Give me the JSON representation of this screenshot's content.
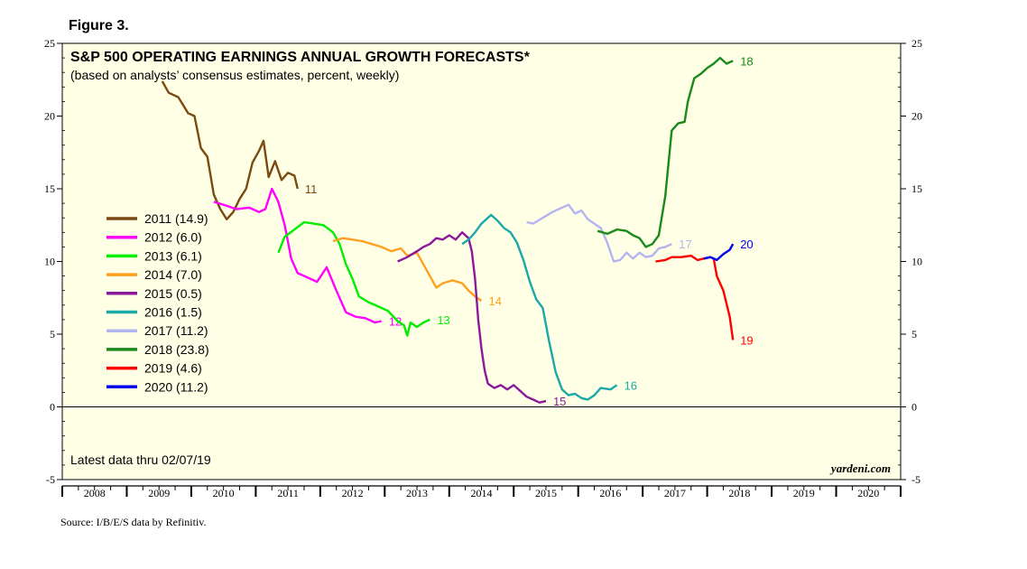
{
  "figure_label": "Figure 3.",
  "source_note": "Source: I/B/E/S data by Refinitiv.",
  "watermark": "yardeni.com",
  "latest_data": "Latest data thru 02/07/19",
  "chart_data": {
    "type": "line",
    "title": "S&P 500 OPERATING EARNINGS ANNUAL GROWTH FORECASTS*",
    "subtitle": "(based on analysts’ consensus estimates, percent, weekly)",
    "xlabel": "",
    "ylabel": "",
    "xlim": [
      2007.5,
      2020.5
    ],
    "ylim": [
      -5,
      25
    ],
    "y_ticks": [
      -5,
      0,
      5,
      10,
      15,
      20,
      25
    ],
    "x_tick_labels": [
      "2008",
      "2009",
      "2010",
      "2011",
      "2012",
      "2013",
      "2014",
      "2015",
      "2016",
      "2017",
      "2018",
      "2019",
      "2020"
    ],
    "grid": false,
    "zero_line": true,
    "legend_position": "left",
    "series": [
      {
        "name": "2011 (14.9)",
        "end_label": "11",
        "color": "#7b4a12",
        "points": [
          [
            2009.05,
            22.4
          ],
          [
            2009.15,
            21.6
          ],
          [
            2009.3,
            21.3
          ],
          [
            2009.45,
            20.2
          ],
          [
            2009.55,
            20.0
          ],
          [
            2009.65,
            17.8
          ],
          [
            2009.75,
            17.2
          ],
          [
            2009.85,
            14.6
          ],
          [
            2009.95,
            13.6
          ],
          [
            2010.05,
            12.9
          ],
          [
            2010.15,
            13.4
          ],
          [
            2010.25,
            14.3
          ],
          [
            2010.35,
            15.0
          ],
          [
            2010.45,
            16.8
          ],
          [
            2010.55,
            17.6
          ],
          [
            2010.62,
            18.3
          ],
          [
            2010.7,
            15.8
          ],
          [
            2010.8,
            16.9
          ],
          [
            2010.9,
            15.6
          ],
          [
            2011.0,
            16.1
          ],
          [
            2011.1,
            15.9
          ],
          [
            2011.15,
            15.0
          ]
        ]
      },
      {
        "name": "2012 (6.0)",
        "end_label": "12",
        "color": "#ff00ff",
        "points": [
          [
            2009.85,
            14.1
          ],
          [
            2010.0,
            13.9
          ],
          [
            2010.2,
            13.6
          ],
          [
            2010.4,
            13.7
          ],
          [
            2010.55,
            13.4
          ],
          [
            2010.65,
            13.6
          ],
          [
            2010.75,
            15.0
          ],
          [
            2010.85,
            14.1
          ],
          [
            2010.95,
            12.5
          ],
          [
            2011.05,
            10.2
          ],
          [
            2011.15,
            9.2
          ],
          [
            2011.3,
            8.9
          ],
          [
            2011.45,
            8.6
          ],
          [
            2011.6,
            9.6
          ],
          [
            2011.75,
            8.0
          ],
          [
            2011.9,
            6.5
          ],
          [
            2012.05,
            6.2
          ],
          [
            2012.2,
            6.1
          ],
          [
            2012.35,
            5.8
          ],
          [
            2012.45,
            5.9
          ]
        ]
      },
      {
        "name": "2013 (6.1)",
        "end_label": "13",
        "color": "#00ee00",
        "points": [
          [
            2010.85,
            10.6
          ],
          [
            2010.95,
            11.7
          ],
          [
            2011.1,
            12.2
          ],
          [
            2011.25,
            12.7
          ],
          [
            2011.4,
            12.6
          ],
          [
            2011.55,
            12.5
          ],
          [
            2011.7,
            12.0
          ],
          [
            2011.8,
            11.2
          ],
          [
            2011.9,
            9.8
          ],
          [
            2012.0,
            8.8
          ],
          [
            2012.1,
            7.6
          ],
          [
            2012.25,
            7.2
          ],
          [
            2012.4,
            6.9
          ],
          [
            2012.55,
            6.6
          ],
          [
            2012.7,
            5.9
          ],
          [
            2012.8,
            5.6
          ],
          [
            2012.85,
            4.9
          ],
          [
            2012.9,
            5.8
          ],
          [
            2013.0,
            5.5
          ],
          [
            2013.1,
            5.8
          ],
          [
            2013.2,
            6.0
          ]
        ]
      },
      {
        "name": "2014 (7.0)",
        "end_label": "14",
        "color": "#ffa020",
        "points": [
          [
            2011.7,
            11.4
          ],
          [
            2011.85,
            11.6
          ],
          [
            2012.0,
            11.5
          ],
          [
            2012.15,
            11.4
          ],
          [
            2012.3,
            11.2
          ],
          [
            2012.45,
            11.0
          ],
          [
            2012.6,
            10.7
          ],
          [
            2012.75,
            10.9
          ],
          [
            2012.85,
            10.4
          ],
          [
            2013.0,
            10.6
          ],
          [
            2013.1,
            9.8
          ],
          [
            2013.2,
            9.0
          ],
          [
            2013.3,
            8.2
          ],
          [
            2013.4,
            8.5
          ],
          [
            2013.55,
            8.7
          ],
          [
            2013.7,
            8.5
          ],
          [
            2013.8,
            8.0
          ],
          [
            2013.9,
            7.6
          ],
          [
            2014.0,
            7.3
          ]
        ]
      },
      {
        "name": "2015 (0.5)",
        "end_label": "15",
        "color": "#8b1a9a",
        "points": [
          [
            2012.7,
            10.0
          ],
          [
            2012.85,
            10.3
          ],
          [
            2013.0,
            10.7
          ],
          [
            2013.1,
            11.0
          ],
          [
            2013.2,
            11.2
          ],
          [
            2013.3,
            11.6
          ],
          [
            2013.4,
            11.5
          ],
          [
            2013.5,
            11.8
          ],
          [
            2013.6,
            11.5
          ],
          [
            2013.7,
            12.0
          ],
          [
            2013.8,
            11.6
          ],
          [
            2013.85,
            10.7
          ],
          [
            2013.9,
            8.8
          ],
          [
            2013.95,
            6.0
          ],
          [
            2014.0,
            4.0
          ],
          [
            2014.05,
            2.5
          ],
          [
            2014.1,
            1.6
          ],
          [
            2014.2,
            1.3
          ],
          [
            2014.3,
            1.5
          ],
          [
            2014.4,
            1.2
          ],
          [
            2014.5,
            1.5
          ],
          [
            2014.6,
            1.1
          ],
          [
            2014.7,
            0.7
          ],
          [
            2014.8,
            0.5
          ],
          [
            2014.9,
            0.3
          ],
          [
            2015.0,
            0.4
          ]
        ]
      },
      {
        "name": "2016 (1.5)",
        "end_label": "16",
        "color": "#1aa8a8",
        "points": [
          [
            2013.7,
            11.2
          ],
          [
            2013.8,
            11.5
          ],
          [
            2013.9,
            12.0
          ],
          [
            2014.0,
            12.6
          ],
          [
            2014.1,
            13.0
          ],
          [
            2014.15,
            13.2
          ],
          [
            2014.25,
            12.8
          ],
          [
            2014.35,
            12.3
          ],
          [
            2014.45,
            12.0
          ],
          [
            2014.55,
            11.3
          ],
          [
            2014.65,
            10.1
          ],
          [
            2014.75,
            8.6
          ],
          [
            2014.85,
            7.4
          ],
          [
            2014.95,
            6.8
          ],
          [
            2015.05,
            4.5
          ],
          [
            2015.15,
            2.4
          ],
          [
            2015.25,
            1.2
          ],
          [
            2015.35,
            0.8
          ],
          [
            2015.45,
            0.9
          ],
          [
            2015.55,
            0.6
          ],
          [
            2015.65,
            0.5
          ],
          [
            2015.75,
            0.8
          ],
          [
            2015.85,
            1.3
          ],
          [
            2016.0,
            1.2
          ],
          [
            2016.1,
            1.5
          ]
        ]
      },
      {
        "name": "2017 (11.2)",
        "end_label": "17",
        "color": "#b4b4f0",
        "points": [
          [
            2014.7,
            12.7
          ],
          [
            2014.8,
            12.6
          ],
          [
            2014.95,
            13.0
          ],
          [
            2015.1,
            13.4
          ],
          [
            2015.25,
            13.7
          ],
          [
            2015.35,
            13.9
          ],
          [
            2015.45,
            13.3
          ],
          [
            2015.55,
            13.5
          ],
          [
            2015.65,
            12.9
          ],
          [
            2015.75,
            12.6
          ],
          [
            2015.85,
            12.3
          ],
          [
            2015.95,
            11.3
          ],
          [
            2016.05,
            10.0
          ],
          [
            2016.15,
            10.1
          ],
          [
            2016.25,
            10.6
          ],
          [
            2016.35,
            10.2
          ],
          [
            2016.45,
            10.6
          ],
          [
            2016.55,
            10.3
          ],
          [
            2016.65,
            10.4
          ],
          [
            2016.75,
            10.9
          ],
          [
            2016.85,
            11.0
          ],
          [
            2016.95,
            11.2
          ]
        ]
      },
      {
        "name": "2018 (23.8)",
        "end_label": "18",
        "color": "#1a8a1a",
        "points": [
          [
            2015.8,
            12.1
          ],
          [
            2015.95,
            11.9
          ],
          [
            2016.1,
            12.2
          ],
          [
            2016.25,
            12.1
          ],
          [
            2016.35,
            11.8
          ],
          [
            2016.45,
            11.6
          ],
          [
            2016.55,
            11.0
          ],
          [
            2016.65,
            11.2
          ],
          [
            2016.75,
            11.8
          ],
          [
            2016.85,
            14.5
          ],
          [
            2016.95,
            19.0
          ],
          [
            2017.05,
            19.5
          ],
          [
            2017.15,
            19.6
          ],
          [
            2017.2,
            21.0
          ],
          [
            2017.3,
            22.6
          ],
          [
            2017.4,
            22.9
          ],
          [
            2017.5,
            23.3
          ],
          [
            2017.6,
            23.6
          ],
          [
            2017.7,
            24.0
          ],
          [
            2017.8,
            23.6
          ],
          [
            2017.9,
            23.8
          ]
        ]
      },
      {
        "name": "2019 (4.6)",
        "end_label": "19",
        "color": "#ff0000",
        "points": [
          [
            2016.7,
            10.0
          ],
          [
            2016.85,
            10.1
          ],
          [
            2016.95,
            10.3
          ],
          [
            2017.1,
            10.3
          ],
          [
            2017.25,
            10.4
          ],
          [
            2017.35,
            10.1
          ],
          [
            2017.45,
            10.2
          ],
          [
            2017.55,
            10.3
          ],
          [
            2017.6,
            10.2
          ],
          [
            2017.65,
            9.0
          ],
          [
            2017.75,
            8.0
          ],
          [
            2017.85,
            6.2
          ],
          [
            2017.9,
            4.6
          ]
        ]
      },
      {
        "name": "2020 (11.2)",
        "end_label": "20",
        "color": "#0000ee",
        "points": [
          [
            2017.45,
            10.2
          ],
          [
            2017.55,
            10.3
          ],
          [
            2017.65,
            10.1
          ],
          [
            2017.75,
            10.5
          ],
          [
            2017.85,
            10.8
          ],
          [
            2017.9,
            11.2
          ]
        ]
      }
    ]
  }
}
